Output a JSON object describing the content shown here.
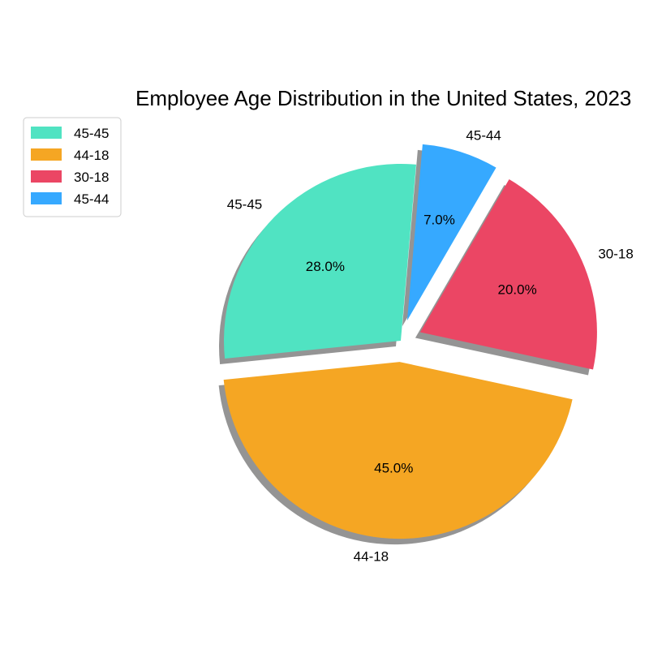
{
  "chart_data": {
    "type": "pie",
    "title": "Employee Age Distribution in the United States, 2023",
    "categories": [
      "45-45",
      "44-18",
      "30-18",
      "45-44"
    ],
    "values": [
      28.0,
      45.0,
      20.0,
      7.0
    ],
    "value_labels": [
      "28.0%",
      "45.0%",
      "20.0%",
      "7.0%"
    ],
    "colors": [
      "#50E3C2",
      "#F5A623",
      "#EB4664",
      "#36A9FF"
    ],
    "exploded": [
      false,
      true,
      true,
      true
    ],
    "shadow": true,
    "legend": {
      "position": "top-left",
      "entries": [
        "45-45",
        "44-18",
        "30-18",
        "45-44"
      ]
    }
  }
}
